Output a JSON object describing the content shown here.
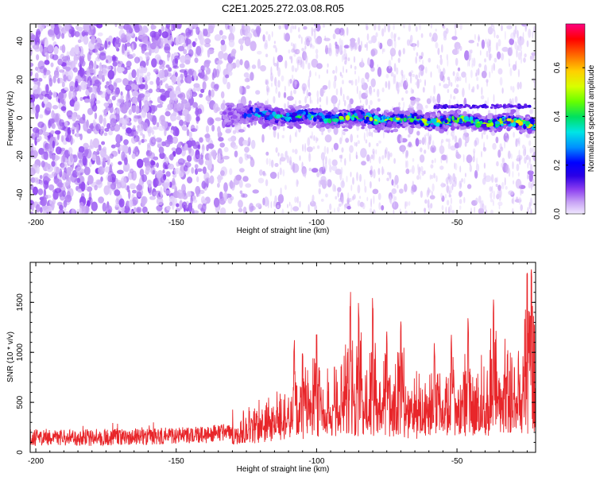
{
  "title": "C2E1.2025.272.03.08.R05",
  "chart_data": [
    {
      "type": "heatmap",
      "name": "spectrogram",
      "xlabel": "Height of straight line (km)",
      "ylabel": "Frequency (Hz)",
      "xlim": [
        -202,
        -22
      ],
      "ylim": [
        -50,
        49
      ],
      "xticks": [
        -200,
        -150,
        -100,
        -50
      ],
      "xtick_labels": [
        "-200",
        "-150",
        "-100",
        "-50"
      ],
      "yticks": [
        -40,
        -20,
        0,
        20,
        40
      ],
      "ytick_labels": [
        "-40",
        "-20",
        "0",
        "20",
        "40"
      ],
      "colorbar": {
        "label": "Normalized spectral amplitude",
        "range": [
          0,
          0.78
        ],
        "ticks": [
          0.0,
          0.2,
          0.4,
          0.6
        ],
        "tick_labels": [
          "0.0",
          "0.2",
          "0.4",
          "0.6"
        ],
        "colormap": [
          "#f0e8ff",
          "#c9a5f5",
          "#8a3df0",
          "#2a00e6",
          "#0000ff",
          "#0090ff",
          "#00e5e5",
          "#00e060",
          "#66ff00",
          "#d8ff00",
          "#ffd000",
          "#ff7000",
          "#ff0000",
          "#ff0080"
        ]
      },
      "ridge": {
        "x_start": -133,
        "x_end": -22,
        "freq_start": 2,
        "freq_end": -3,
        "peak_amplitude": 0.74
      },
      "noise_amplitude": 0.1
    },
    {
      "type": "line",
      "name": "snr",
      "xlabel": "Height of straight line (km)",
      "ylabel": "SNR (10 * v/v)",
      "xlim": [
        -202,
        -22
      ],
      "ylim": [
        0,
        1900
      ],
      "xticks": [
        -200,
        -150,
        -100,
        -50
      ],
      "xtick_labels": [
        "-200",
        "-150",
        "-100",
        "-50"
      ],
      "yticks": [
        0,
        500,
        1000,
        1500
      ],
      "ytick_labels": [
        "0",
        "500",
        "1000",
        "1500"
      ],
      "color": "#e8262a",
      "baseline": {
        "x": [
          -202,
          -180,
          -160,
          -140,
          -130,
          -120,
          -110,
          -100,
          -90,
          -80,
          -70,
          -60,
          -50,
          -40,
          -30,
          -25,
          -22
        ],
        "y": [
          150,
          150,
          160,
          175,
          210,
          270,
          340,
          420,
          470,
          450,
          400,
          380,
          420,
          440,
          480,
          520,
          540
        ]
      },
      "peaks": [
        {
          "x": -108,
          "y": 1150
        },
        {
          "x": -105,
          "y": 1100
        },
        {
          "x": -100,
          "y": 1180
        },
        {
          "x": -88,
          "y": 1660
        },
        {
          "x": -85,
          "y": 1500
        },
        {
          "x": -80,
          "y": 1550
        },
        {
          "x": -75,
          "y": 1250
        },
        {
          "x": -70,
          "y": 1350
        },
        {
          "x": -58,
          "y": 1100
        },
        {
          "x": -52,
          "y": 1200
        },
        {
          "x": -46,
          "y": 1400
        },
        {
          "x": -37,
          "y": 1550
        },
        {
          "x": -32,
          "y": 1050
        },
        {
          "x": -25,
          "y": 1800
        },
        {
          "x": -23.5,
          "y": 1860
        }
      ]
    }
  ]
}
